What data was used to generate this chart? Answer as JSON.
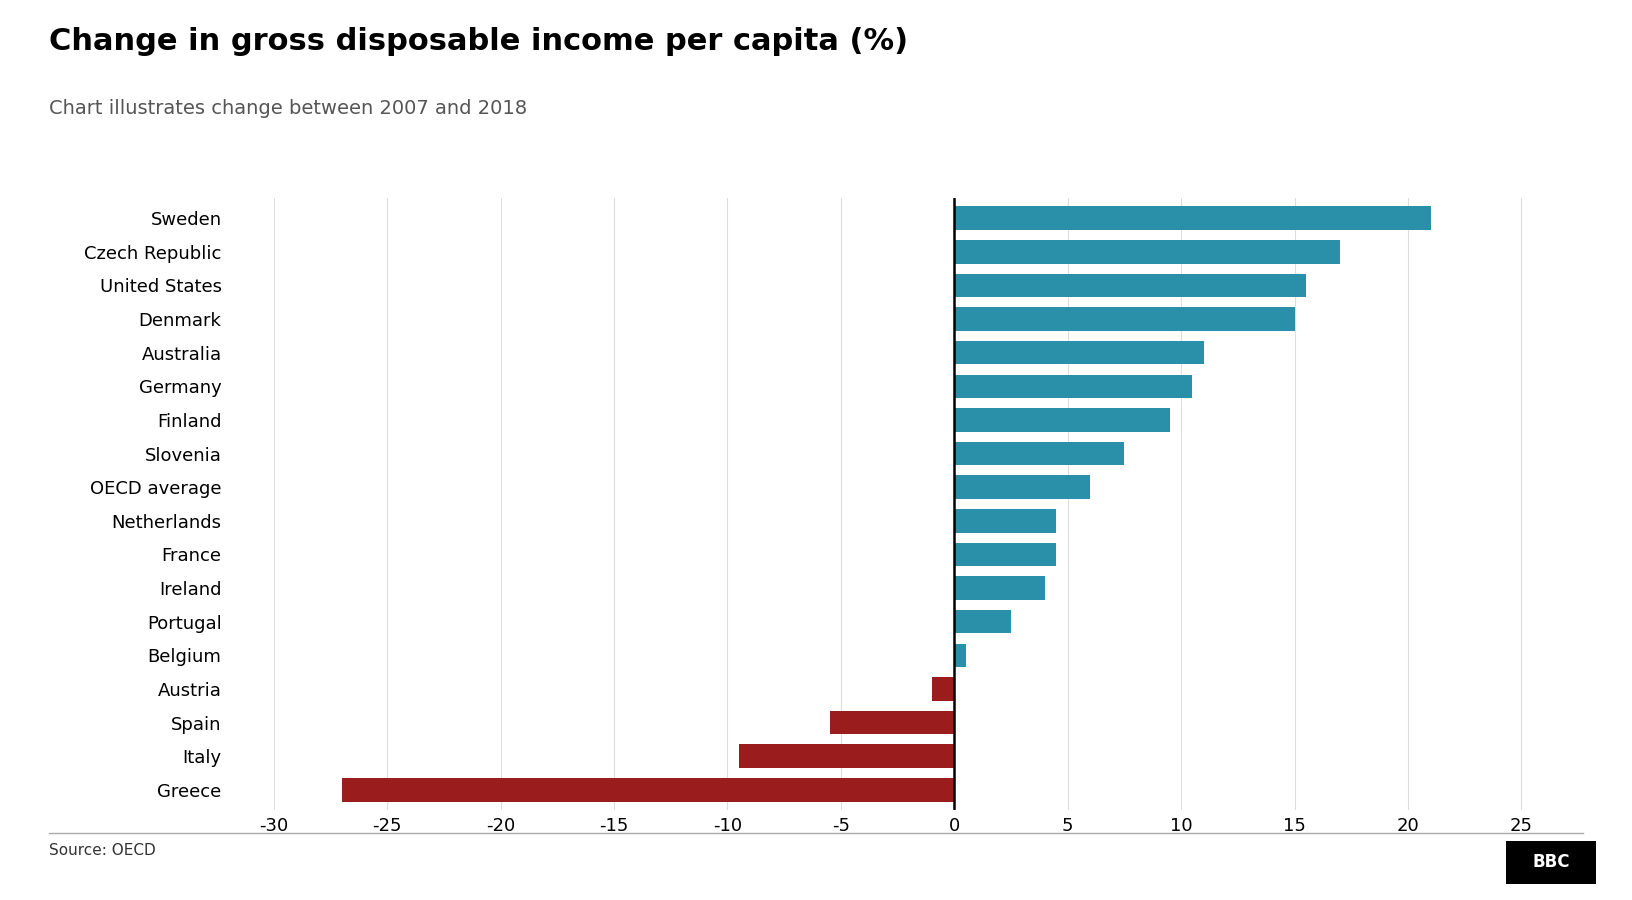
{
  "title": "Change in gross disposable income per capita (%)",
  "subtitle": "Chart illustrates change between 2007 and 2018",
  "source": "Source: OECD",
  "categories": [
    "Sweden",
    "Czech Republic",
    "United States",
    "Denmark",
    "Australia",
    "Germany",
    "Finland",
    "Slovenia",
    "OECD average",
    "Netherlands",
    "France",
    "Ireland",
    "Portugal",
    "Belgium",
    "Austria",
    "Spain",
    "Italy",
    "Greece"
  ],
  "values": [
    21,
    17,
    15.5,
    15,
    11,
    10.5,
    9.5,
    7.5,
    6,
    4.5,
    4.5,
    4,
    2.5,
    0.5,
    -1,
    -5.5,
    -9.5,
    -27
  ],
  "positive_color": "#2a8fa8",
  "negative_color": "#9b1c1c",
  "background_color": "#ffffff",
  "title_fontsize": 22,
  "subtitle_fontsize": 14,
  "source_fontsize": 11,
  "tick_fontsize": 13,
  "xlim": [
    -32,
    27
  ],
  "xticks": [
    -30,
    -25,
    -20,
    -15,
    -10,
    -5,
    0,
    5,
    10,
    15,
    20,
    25
  ],
  "zero_line_color": "#000000"
}
